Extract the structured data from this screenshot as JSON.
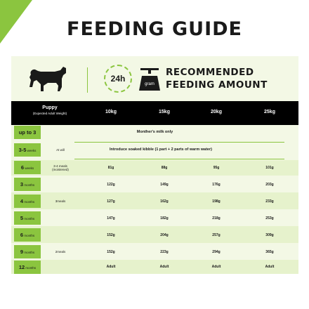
{
  "title": "FEEDING GUIDE",
  "badge_24h": "24h",
  "badge_gram": "gram",
  "recommended": [
    "RECOMMENDED",
    "FEEDING AMOUNT"
  ],
  "header": {
    "puppy": "Puppy",
    "puppy_sub": "(Expected Adult Weight)",
    "weights": [
      "10kg",
      "15kg",
      "20kg",
      "25kg"
    ]
  },
  "rows": [
    {
      "age_num": "up to 3",
      "age_unit": "weeks",
      "meals": "",
      "span": "Monther's milk only"
    },
    {
      "age_num": "3-5",
      "age_unit": "weeks",
      "meals": "At will",
      "span": "Introduce soaked kibble (1 part + 2 parts of warm water)"
    },
    {
      "age_num": "6",
      "age_unit": "weeks",
      "meals": "3-4 meals (moistened)",
      "values": [
        "81g",
        "88g",
        "95g",
        "101g"
      ]
    },
    {
      "age_num": "3",
      "age_unit": "months",
      "meals": "",
      "values": [
        "122g",
        "149g",
        "176g",
        "203g"
      ]
    },
    {
      "age_num": "4",
      "age_unit": "months",
      "meals": "3meals",
      "values": [
        "127g",
        "162g",
        "198g",
        "233g"
      ]
    },
    {
      "age_num": "5",
      "age_unit": "months",
      "meals": "",
      "values": [
        "147g",
        "182g",
        "218g",
        "253g"
      ]
    },
    {
      "age_num": "6",
      "age_unit": "months",
      "meals": "",
      "values": [
        "152g",
        "204g",
        "257g",
        "309g"
      ]
    },
    {
      "age_num": "9",
      "age_unit": "months",
      "meals": "2meals",
      "values": [
        "152g",
        "223g",
        "294g",
        "365g"
      ]
    },
    {
      "age_num": "12",
      "age_unit": "months",
      "meals": "",
      "values": [
        "Adult",
        "Adult",
        "Adult",
        "Adult"
      ]
    }
  ],
  "colors": {
    "accent": "#8bc53f",
    "header_bg": "#000000",
    "row_light": "#f3f8e5",
    "row_alt": "#e6f2cc"
  }
}
